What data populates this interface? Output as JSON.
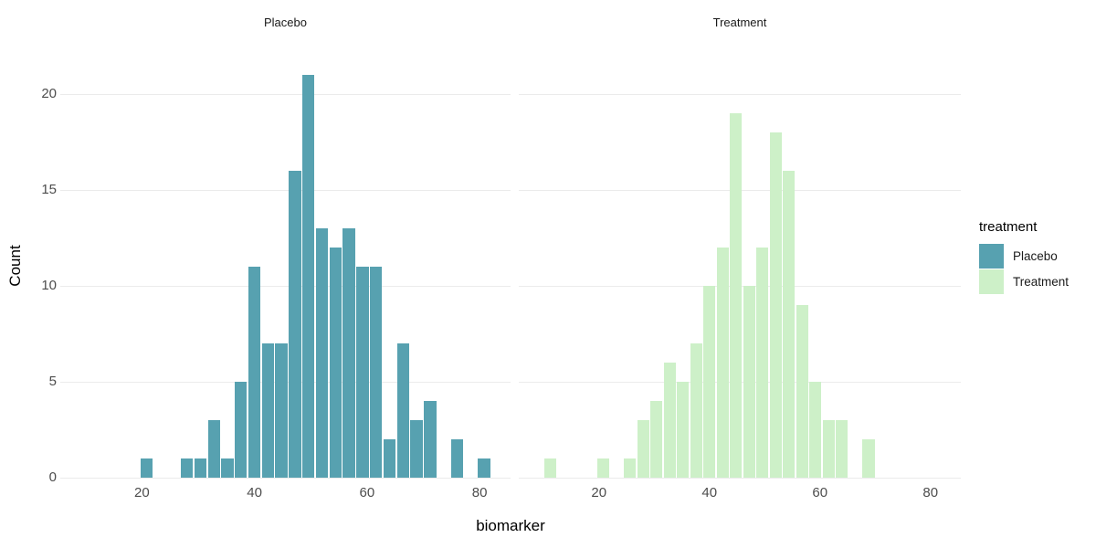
{
  "titles": {
    "x_axis": "biomarker",
    "y_axis": "Count"
  },
  "legend": {
    "title": "treatment",
    "position": "right",
    "entries": [
      {
        "label": "Placebo",
        "color": "#57A1B0"
      },
      {
        "label": "Treatment",
        "color": "#CDF0C8"
      }
    ]
  },
  "colors": {
    "background": "#FFFFFF",
    "gridline": "#EBEBEB",
    "tick_label": "#4D4D4D",
    "strip_text": "#1A1A1A"
  },
  "chart_data": {
    "type": "bar",
    "subtype": "faceted-histogram",
    "title": "",
    "xlabel": "biomarker",
    "ylabel": "Count",
    "x_ticks": [
      20,
      40,
      60,
      80
    ],
    "y_ticks": [
      0,
      5,
      10,
      15,
      20
    ],
    "xlim": [
      5.5,
      85.5
    ],
    "ylim": [
      0,
      22.05
    ],
    "bin_width": 2.4,
    "grid": "horizontal-major-only",
    "legend_position": "right",
    "facets": [
      {
        "name": "Placebo",
        "color": "#57A1B0",
        "total_count": 153,
        "bins": [
          {
            "x": 20.8,
            "count": 1
          },
          {
            "x": 28.0,
            "count": 1
          },
          {
            "x": 30.4,
            "count": 1
          },
          {
            "x": 32.8,
            "count": 3
          },
          {
            "x": 35.2,
            "count": 1
          },
          {
            "x": 37.6,
            "count": 5
          },
          {
            "x": 40.0,
            "count": 11
          },
          {
            "x": 42.4,
            "count": 7
          },
          {
            "x": 44.8,
            "count": 7
          },
          {
            "x": 47.2,
            "count": 16
          },
          {
            "x": 49.6,
            "count": 21
          },
          {
            "x": 52.0,
            "count": 13
          },
          {
            "x": 54.4,
            "count": 12
          },
          {
            "x": 56.8,
            "count": 13
          },
          {
            "x": 59.2,
            "count": 11
          },
          {
            "x": 61.6,
            "count": 11
          },
          {
            "x": 64.0,
            "count": 2
          },
          {
            "x": 66.4,
            "count": 7
          },
          {
            "x": 68.8,
            "count": 3
          },
          {
            "x": 71.2,
            "count": 4
          },
          {
            "x": 76.0,
            "count": 2
          },
          {
            "x": 80.8,
            "count": 1
          }
        ]
      },
      {
        "name": "Treatment",
        "color": "#CDF0C8",
        "total_count": 147,
        "bins": [
          {
            "x": 11.2,
            "count": 1
          },
          {
            "x": 20.8,
            "count": 1
          },
          {
            "x": 25.6,
            "count": 1
          },
          {
            "x": 28.0,
            "count": 3
          },
          {
            "x": 30.4,
            "count": 4
          },
          {
            "x": 32.8,
            "count": 6
          },
          {
            "x": 35.2,
            "count": 5
          },
          {
            "x": 37.6,
            "count": 7
          },
          {
            "x": 40.0,
            "count": 10
          },
          {
            "x": 42.4,
            "count": 12
          },
          {
            "x": 44.8,
            "count": 19
          },
          {
            "x": 47.2,
            "count": 10
          },
          {
            "x": 49.6,
            "count": 12
          },
          {
            "x": 52.0,
            "count": 18
          },
          {
            "x": 54.4,
            "count": 16
          },
          {
            "x": 56.8,
            "count": 9
          },
          {
            "x": 59.2,
            "count": 5
          },
          {
            "x": 61.6,
            "count": 3
          },
          {
            "x": 64.0,
            "count": 3
          },
          {
            "x": 68.8,
            "count": 2
          }
        ]
      }
    ]
  }
}
